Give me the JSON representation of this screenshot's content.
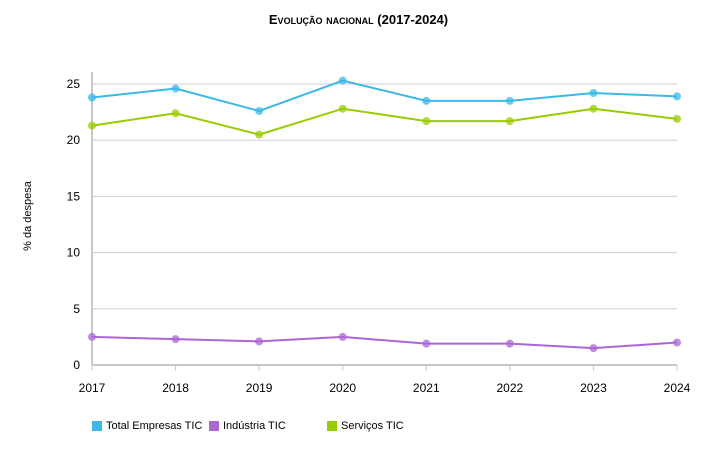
{
  "chart_data": {
    "type": "line",
    "title": "Evolução nacional (2017-2024)",
    "xlabel": "",
    "ylabel": "% da despesa",
    "ylim": [
      0,
      26
    ],
    "yticks": [
      0,
      5,
      10,
      15,
      20,
      25
    ],
    "grid": true,
    "legend_position": "bottom-left",
    "categories": [
      "2017",
      "2018",
      "2019",
      "2020",
      "2021",
      "2022",
      "2023",
      "2024"
    ],
    "series": [
      {
        "name": "Total Empresas TIC",
        "color": "#3bb8e8",
        "values": [
          23.8,
          24.6,
          22.6,
          25.3,
          23.5,
          23.5,
          24.2,
          23.9
        ]
      },
      {
        "name": "Indústria TIC",
        "color": "#a967d4",
        "values": [
          2.5,
          2.3,
          2.1,
          2.5,
          1.9,
          1.9,
          1.5,
          2.0
        ]
      },
      {
        "name": "Serviços TIC",
        "color": "#99cc00",
        "values": [
          21.3,
          22.4,
          20.5,
          22.8,
          21.7,
          21.7,
          22.8,
          21.9
        ]
      }
    ]
  }
}
